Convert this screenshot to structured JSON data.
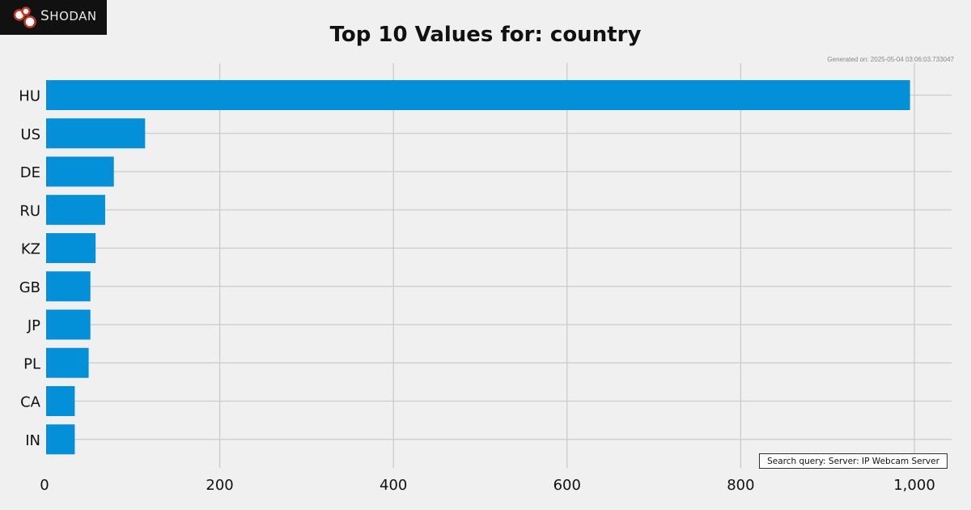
{
  "brand": {
    "name": "Shodan",
    "logo_icon": "shodan-logo-icon"
  },
  "generated_label": "Generated on: 2025-05-04 03:06:03.733047",
  "search_query": "Search query: Server: IP Webcam Server",
  "colors": {
    "bar": "#0390d8",
    "background": "#f0f0f0",
    "grid": "#cbcbcb"
  },
  "chart_data": {
    "type": "bar",
    "orientation": "horizontal",
    "title": "Top 10 Values for: country",
    "xlabel": "",
    "ylabel": "",
    "categories": [
      "HU",
      "US",
      "DE",
      "RU",
      "KZ",
      "GB",
      "JP",
      "PL",
      "CA",
      "IN"
    ],
    "values": [
      995,
      114,
      78,
      68,
      57,
      51,
      51,
      49,
      33,
      33
    ],
    "xlim": [
      0,
      1045
    ],
    "xticks": [
      0,
      200,
      400,
      600,
      800,
      1000
    ],
    "xtick_labels": [
      "0",
      "200",
      "400",
      "600",
      "800",
      "1,000"
    ],
    "grid": true,
    "legend": "none"
  }
}
